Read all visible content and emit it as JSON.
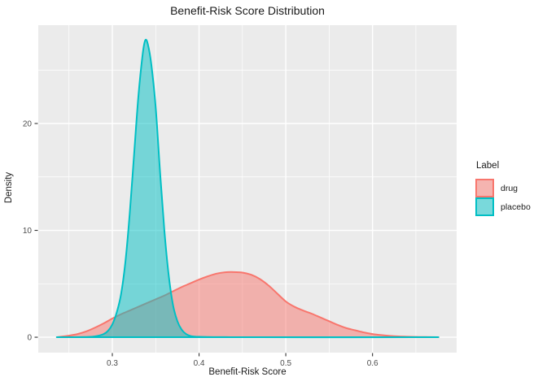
{
  "chart_data": {
    "type": "area",
    "subtype": "density",
    "title": "Benefit-Risk Score Distribution",
    "xlabel": "Benefit-Risk Score",
    "ylabel": "Density",
    "legend_title": "Label",
    "legend_position": "right",
    "grid": true,
    "panel_bg": "#EBEBEB",
    "grid_color": "#FFFFFF",
    "tick_color": "#333333",
    "tick_label_color": "#4D4D4D",
    "xlim": [
      0.2146,
      0.697
    ],
    "ylim": [
      -1.44,
      29.2
    ],
    "x_ticks": [
      0.3,
      0.4,
      0.5,
      0.6
    ],
    "x_tick_labels": [
      "0.3",
      "0.4",
      "0.5",
      "0.6"
    ],
    "y_ticks": [
      0,
      10,
      20
    ],
    "y_tick_labels": [
      "0",
      "10",
      "20"
    ],
    "x_minor_ticks": [
      0.25,
      0.35,
      0.45,
      0.55,
      0.65
    ],
    "y_minor_ticks": [
      5,
      15,
      25
    ],
    "series": [
      {
        "name": "drug",
        "color": "#F8766D",
        "fill_alpha": 0.5,
        "points": [
          [
            0.236,
            0
          ],
          [
            0.25,
            0.15
          ],
          [
            0.26,
            0.3
          ],
          [
            0.27,
            0.55
          ],
          [
            0.28,
            0.9
          ],
          [
            0.29,
            1.3
          ],
          [
            0.3,
            1.75
          ],
          [
            0.31,
            2.15
          ],
          [
            0.32,
            2.5
          ],
          [
            0.33,
            2.85
          ],
          [
            0.34,
            3.2
          ],
          [
            0.35,
            3.55
          ],
          [
            0.36,
            3.9
          ],
          [
            0.37,
            4.3
          ],
          [
            0.38,
            4.7
          ],
          [
            0.39,
            5.05
          ],
          [
            0.4,
            5.4
          ],
          [
            0.41,
            5.7
          ],
          [
            0.42,
            5.95
          ],
          [
            0.43,
            6.08
          ],
          [
            0.44,
            6.1
          ],
          [
            0.45,
            6.05
          ],
          [
            0.46,
            5.85
          ],
          [
            0.47,
            5.45
          ],
          [
            0.48,
            4.85
          ],
          [
            0.49,
            4.1
          ],
          [
            0.5,
            3.35
          ],
          [
            0.51,
            2.85
          ],
          [
            0.52,
            2.5
          ],
          [
            0.53,
            2.2
          ],
          [
            0.54,
            1.85
          ],
          [
            0.55,
            1.5
          ],
          [
            0.56,
            1.15
          ],
          [
            0.57,
            0.85
          ],
          [
            0.58,
            0.65
          ],
          [
            0.59,
            0.45
          ],
          [
            0.6,
            0.3
          ],
          [
            0.61,
            0.2
          ],
          [
            0.62,
            0.13
          ],
          [
            0.63,
            0.08
          ],
          [
            0.64,
            0.05
          ],
          [
            0.65,
            0.03
          ],
          [
            0.66,
            0.02
          ],
          [
            0.676,
            0
          ]
        ]
      },
      {
        "name": "placebo",
        "color": "#00BFC4",
        "fill_alpha": 0.5,
        "points": [
          [
            0.236,
            0
          ],
          [
            0.27,
            0.02
          ],
          [
            0.28,
            0.08
          ],
          [
            0.29,
            0.3
          ],
          [
            0.295,
            0.6
          ],
          [
            0.3,
            1.2
          ],
          [
            0.305,
            2.3
          ],
          [
            0.31,
            4.0
          ],
          [
            0.315,
            7.0
          ],
          [
            0.32,
            11.5
          ],
          [
            0.325,
            17.0
          ],
          [
            0.33,
            22.5
          ],
          [
            0.335,
            26.5
          ],
          [
            0.338,
            27.8
          ],
          [
            0.341,
            27.4
          ],
          [
            0.345,
            25.5
          ],
          [
            0.35,
            21.5
          ],
          [
            0.355,
            15.5
          ],
          [
            0.36,
            10.0
          ],
          [
            0.365,
            5.8
          ],
          [
            0.37,
            3.0
          ],
          [
            0.375,
            1.5
          ],
          [
            0.38,
            0.7
          ],
          [
            0.385,
            0.3
          ],
          [
            0.39,
            0.12
          ],
          [
            0.4,
            0.04
          ],
          [
            0.43,
            0.01
          ],
          [
            0.47,
            0
          ],
          [
            0.676,
            0
          ]
        ]
      }
    ]
  }
}
